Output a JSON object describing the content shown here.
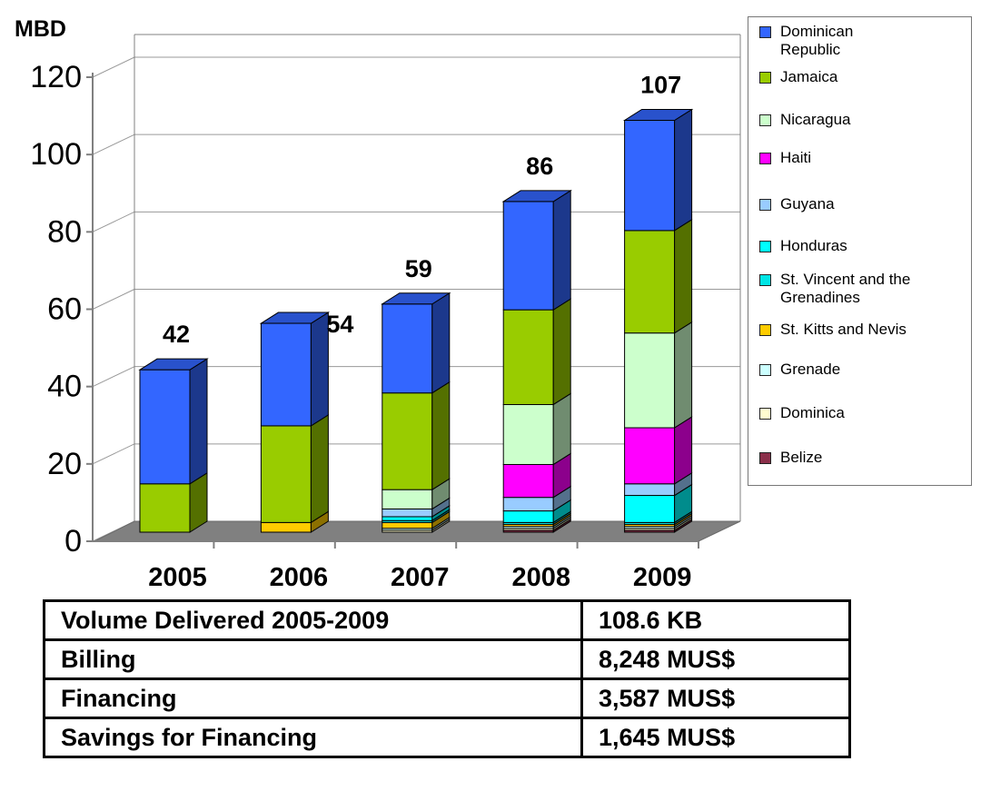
{
  "chart_data": {
    "type": "bar",
    "stacked": true,
    "three_d": true,
    "ylabel": "MBD",
    "ylim": [
      0,
      120
    ],
    "yticks": [
      "0",
      "20",
      "40",
      "60",
      "80",
      "100",
      "120"
    ],
    "grid": true,
    "legend_position": "right",
    "categories": [
      "2005",
      "2006",
      "2007",
      "2008",
      "2009"
    ],
    "totals": [
      "42",
      "54",
      "59",
      "86",
      "107"
    ],
    "series": [
      {
        "name": "Belize",
        "color": "#8b2f4a",
        "values": [
          0,
          0,
          0,
          0.5,
          0.5
        ]
      },
      {
        "name": "Dominica",
        "color": "#fffdd0",
        "values": [
          0,
          0,
          0.5,
          0.5,
          0.5
        ]
      },
      {
        "name": "Grenade",
        "color": "#ccffff",
        "values": [
          0,
          0,
          0.5,
          0.5,
          0.5
        ]
      },
      {
        "name": "St. Kitts and Nevis",
        "color": "#ffcc00",
        "values": [
          0,
          2.5,
          1.5,
          0.5,
          0.5
        ]
      },
      {
        "name": "St. Vincent and the Grenadines",
        "color": "#00e5e5",
        "values": [
          0,
          0,
          0.5,
          0.5,
          0.5
        ]
      },
      {
        "name": "Honduras",
        "color": "#00ffff",
        "values": [
          0,
          0,
          1,
          3,
          7
        ]
      },
      {
        "name": "Guyana",
        "color": "#99ccff",
        "values": [
          0,
          0,
          2,
          3.5,
          3
        ]
      },
      {
        "name": "Haiti",
        "color": "#ff00ff",
        "values": [
          0,
          0,
          0,
          8.5,
          14.5
        ]
      },
      {
        "name": "Nicaragua",
        "color": "#ccffcc",
        "values": [
          0,
          0,
          5,
          15.5,
          24.5
        ]
      },
      {
        "name": "Jamaica",
        "color": "#99cc00",
        "values": [
          12.5,
          25,
          25,
          24.5,
          26.5
        ]
      },
      {
        "name": "Dominican Republic",
        "color": "#3366ff",
        "values": [
          29.5,
          26.5,
          23,
          28,
          28.5
        ]
      }
    ]
  },
  "legend": {
    "items": [
      {
        "label": "Dominican Republic",
        "color": "#3366ff"
      },
      {
        "label": "Jamaica",
        "color": "#99cc00"
      },
      {
        "label": "Nicaragua",
        "color": "#ccffcc"
      },
      {
        "label": "Haiti",
        "color": "#ff00ff"
      },
      {
        "label": "Guyana",
        "color": "#99ccff"
      },
      {
        "label": "Honduras",
        "color": "#00ffff"
      },
      {
        "label": "St. Vincent and the Grenadines",
        "color": "#00e5e5"
      },
      {
        "label": "St. Kitts and Nevis",
        "color": "#ffcc00"
      },
      {
        "label": "Grenade",
        "color": "#ccffff"
      },
      {
        "label": "Dominica",
        "color": "#fffdd0"
      },
      {
        "label": "Belize",
        "color": "#8b2f4a"
      }
    ]
  },
  "summary_table": {
    "rows": [
      {
        "label": "Volume Delivered 2005-2009",
        "value": "108.6 KB"
      },
      {
        "label": "Billing",
        "value": "8,248 MUS$"
      },
      {
        "label": "Financing",
        "value": "3,587 MUS$"
      },
      {
        "label": "Savings for Financing",
        "value": "1,645 MUS$"
      }
    ]
  }
}
